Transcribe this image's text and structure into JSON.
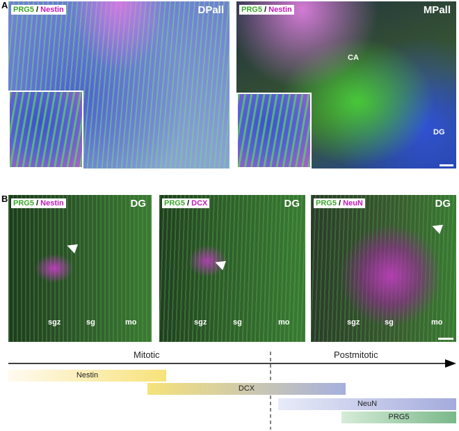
{
  "panel_a": {
    "label": "A",
    "images": [
      {
        "marker1": "PRG5",
        "separator": "/",
        "marker2": "Nestin",
        "region": "DPall"
      },
      {
        "marker1": "PRG5",
        "separator": "/",
        "marker2": "Nestin",
        "region": "MPall",
        "annotations": [
          "CA",
          "DG"
        ]
      }
    ]
  },
  "panel_b": {
    "label": "B",
    "images": [
      {
        "marker1": "PRG5",
        "separator": "/",
        "marker2": "Nestin",
        "region": "DG",
        "layers": [
          "sgz",
          "sg",
          "mo"
        ]
      },
      {
        "marker1": "PRG5",
        "separator": "/",
        "marker2": "DCX",
        "region": "DG",
        "layers": [
          "sgz",
          "sg",
          "mo"
        ]
      },
      {
        "marker1": "PRG5",
        "separator": "/",
        "marker2": "NeuN",
        "region": "DG",
        "layers": [
          "sgz",
          "sg",
          "mo"
        ]
      }
    ]
  },
  "timeline": {
    "phases": [
      "Mitotic",
      "Postmitotic"
    ],
    "bars": [
      "Nestin",
      "DCX",
      "NeuN",
      "PRG5"
    ]
  }
}
